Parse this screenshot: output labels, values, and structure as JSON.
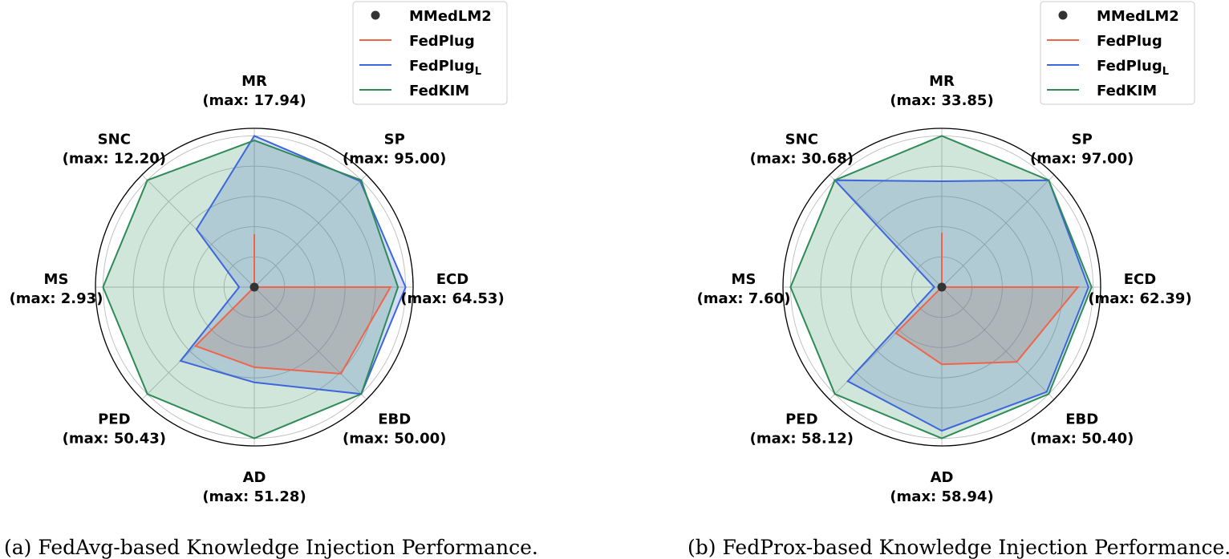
{
  "chart_data": [
    {
      "type": "radar",
      "caption": "(a) FedAvg-based Knowledge Injection Performance.",
      "axes": [
        {
          "name": "MR",
          "max": 17.94,
          "label_max": "(max: 17.94)"
        },
        {
          "name": "SP",
          "max": 95.0,
          "label_max": "(max: 95.00)"
        },
        {
          "name": "ECD",
          "max": 64.53,
          "label_max": "(max: 64.53)"
        },
        {
          "name": "EBD",
          "max": 50.0,
          "label_max": "(max: 50.00)"
        },
        {
          "name": "AD",
          "max": 51.28,
          "label_max": "(max: 51.28)"
        },
        {
          "name": "PED",
          "max": 50.43,
          "label_max": "(max: 50.43)"
        },
        {
          "name": "MS",
          "max": 2.93,
          "label_max": "(max: 2.93)"
        },
        {
          "name": "SNC",
          "max": 12.2,
          "label_max": "(max: 12.20)"
        }
      ],
      "rmax": 1.05,
      "series": [
        {
          "name": "MMedLM2",
          "color": "#333333",
          "kind": "point",
          "values": [
            0,
            0,
            0,
            0,
            0,
            0,
            0,
            0
          ]
        },
        {
          "name": "FedPlug",
          "color": "#f06449",
          "kind": "line",
          "values": [
            0.35,
            0.0,
            0.9,
            0.81,
            0.53,
            0.55,
            0.0,
            0.0
          ]
        },
        {
          "name": "FedPlug",
          "subscript": "L",
          "color": "#3e66dc",
          "kind": "line",
          "values": [
            1.0,
            0.99,
            1.0,
            1.0,
            0.63,
            0.69,
            0.1,
            0.54
          ]
        },
        {
          "name": "FedKIM",
          "color": "#2e8b57",
          "kind": "line",
          "values": [
            0.97,
            1.0,
            0.95,
            1.0,
            1.0,
            1.0,
            1.0,
            1.0
          ]
        }
      ],
      "legend_position": "top-right"
    },
    {
      "type": "radar",
      "caption": "(b) FedProx-based Knowledge Injection Performance.",
      "axes": [
        {
          "name": "MR",
          "max": 33.85,
          "label_max": "(max: 33.85)"
        },
        {
          "name": "SP",
          "max": 97.0,
          "label_max": "(max: 97.00)"
        },
        {
          "name": "ECD",
          "max": 62.39,
          "label_max": "(max: 62.39)"
        },
        {
          "name": "EBD",
          "max": 50.4,
          "label_max": "(max: 50.40)"
        },
        {
          "name": "AD",
          "max": 58.94,
          "label_max": "(max: 58.94)"
        },
        {
          "name": "PED",
          "max": 58.12,
          "label_max": "(max: 58.12)"
        },
        {
          "name": "MS",
          "max": 7.6,
          "label_max": "(max: 7.60)"
        },
        {
          "name": "SNC",
          "max": 30.68,
          "label_max": "(max: 30.68)"
        }
      ],
      "rmax": 1.05,
      "series": [
        {
          "name": "MMedLM2",
          "color": "#333333",
          "kind": "point",
          "values": [
            0,
            0,
            0,
            0,
            0,
            0,
            0,
            0
          ]
        },
        {
          "name": "FedPlug",
          "color": "#f06449",
          "kind": "line",
          "values": [
            0.36,
            0.0,
            0.9,
            0.7,
            0.51,
            0.43,
            0.0,
            0.0
          ]
        },
        {
          "name": "FedPlug",
          "subscript": "L",
          "color": "#3e66dc",
          "kind": "line",
          "values": [
            0.7,
            1.0,
            0.97,
            0.98,
            0.95,
            0.88,
            0.05,
            1.0
          ]
        },
        {
          "name": "FedKIM",
          "color": "#2e8b57",
          "kind": "line",
          "values": [
            1.0,
            1.0,
            0.99,
            1.0,
            1.0,
            1.0,
            1.0,
            1.0
          ]
        }
      ],
      "legend_position": "top-right"
    }
  ]
}
